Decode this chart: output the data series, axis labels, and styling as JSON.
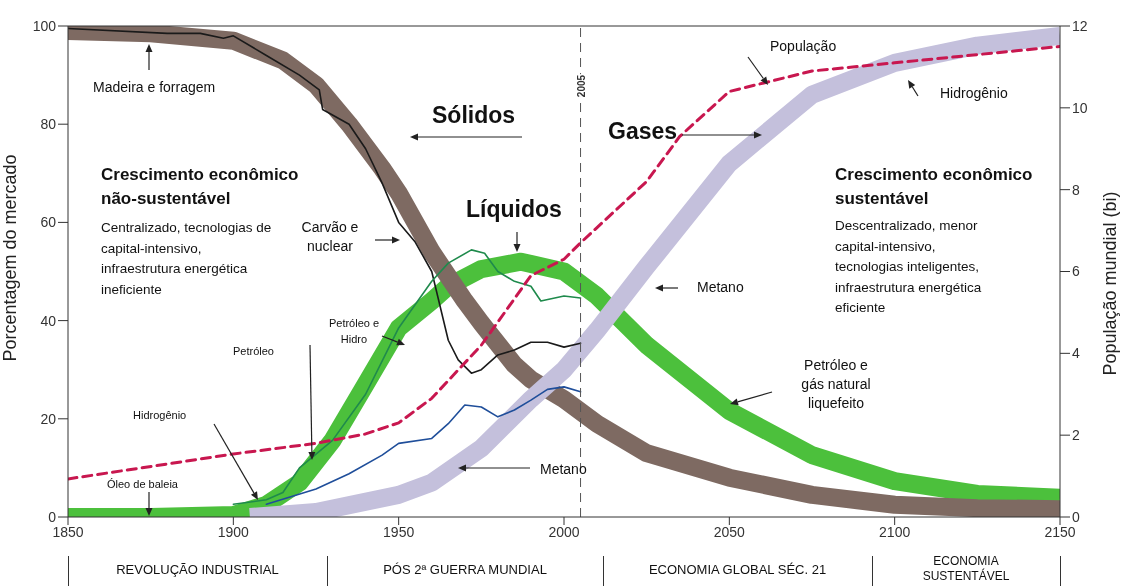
{
  "chart_data": {
    "type": "line",
    "ylabel": "Porcentagem do mercado",
    "y2label": "População mundial (bi)",
    "xlim": [
      1850,
      2150
    ],
    "xticks": [
      1850,
      1900,
      1950,
      2000,
      2050,
      2100,
      2150
    ],
    "ylim": [
      0,
      100
    ],
    "yticks": [
      0,
      20,
      40,
      60,
      80,
      100
    ],
    "y2lim": [
      0,
      12
    ],
    "y2ticks": [
      0,
      2,
      4,
      6,
      8,
      10,
      12
    ],
    "series": [
      {
        "color": "#4cc03c",
        "x": [
          1850,
          1875,
          1900,
          1910,
          1920,
          1930,
          1940,
          1950,
          1960,
          1965,
          1975,
          1987,
          2000,
          2010,
          2025,
          2050,
          2075,
          2100,
          2125,
          2150
        ],
        "values": [
          0,
          0,
          0.4,
          2.5,
          7,
          15.6,
          27,
          38.5,
          44,
          47,
          50.5,
          52,
          50,
          45,
          35,
          21.6,
          12.6,
          7.3,
          4.7,
          3.9
        ]
      },
      {
        "color": "#7e6a62",
        "x": [
          1850,
          1875,
          1900,
          1915,
          1925,
          1935,
          1945,
          1950,
          1960,
          1970,
          1975,
          1985,
          1990,
          2000,
          2010,
          2025,
          2050,
          2075,
          2100,
          2125,
          2150
        ],
        "values": [
          99,
          98.5,
          97,
          93,
          88,
          80,
          71,
          66,
          54,
          44,
          39.5,
          31,
          28,
          24,
          19,
          13,
          8,
          4.5,
          2.5,
          1.8,
          1.6
        ]
      },
      {
        "color": "#c4c0dc",
        "x": [
          1905,
          1925,
          1950,
          1960,
          1975,
          1990,
          2000,
          2010,
          2025,
          2050,
          2075,
          2100,
          2125,
          2150
        ],
        "values": [
          0,
          1,
          4.5,
          7,
          14,
          24,
          30,
          38,
          51,
          72,
          86,
          92.5,
          96,
          98
        ]
      },
      {
        "color": "#1a1a1a",
        "x": [
          1850,
          1880,
          1890,
          1897,
          1900,
          1910,
          1920,
          1926,
          1927,
          1935,
          1940,
          1945,
          1950,
          1955,
          1960,
          1965,
          1968,
          1972,
          1975,
          1980,
          1985,
          1990,
          1995,
          2000,
          2005
        ],
        "values": [
          99.5,
          98.5,
          98.5,
          97.5,
          98,
          94,
          90,
          87,
          83,
          80,
          75,
          68,
          60,
          56,
          50,
          36,
          32,
          29.3,
          30,
          33,
          34,
          35.6,
          35.6,
          34.6,
          35.4
        ]
      },
      {
        "color": "#1f8a4c",
        "x": [
          1900,
          1910,
          1915,
          1920,
          1930,
          1940,
          1950,
          1960,
          1965,
          1972,
          1976,
          1980,
          1985,
          1990,
          1993,
          2000,
          2005
        ],
        "values": [
          2.6,
          3.5,
          5,
          10,
          15.6,
          25,
          38.5,
          48,
          51.7,
          54.4,
          53.7,
          50,
          48,
          47,
          44,
          45,
          44.6
        ]
      },
      {
        "color": "#1f4e9a",
        "x": [
          1910,
          1925,
          1935,
          1945,
          1950,
          1960,
          1965,
          1970,
          1975,
          1980,
          1985,
          1990,
          1995,
          2000,
          2005
        ],
        "values": [
          2.6,
          5.7,
          8.8,
          12.6,
          15,
          16,
          19,
          22.8,
          22.4,
          20.4,
          21.8,
          23.8,
          26,
          26.5,
          25.5
        ]
      },
      {
        "color": "#c8174f",
        "axis": "y2",
        "line_style": "dashed",
        "x": [
          1850,
          1900,
          1925,
          1940,
          1950,
          1960,
          1975,
          1990,
          2000,
          2005,
          2025,
          2035,
          2050,
          2075,
          2100,
          2150
        ],
        "values": [
          0.93,
          1.54,
          1.8,
          2.03,
          2.3,
          2.9,
          4.2,
          5.9,
          6.3,
          6.7,
          8.2,
          9.3,
          10.4,
          10.9,
          11.1,
          11.5
        ]
      }
    ],
    "ref_lines": [
      {
        "axis": "x",
        "value": 2005,
        "label": "2005",
        "line_style": "dashed",
        "color": "#555555"
      }
    ],
    "annotations": [
      "Madeira e forragem",
      "Sólidos",
      "Carvão e nuclear",
      "Líquidos",
      "Petróleo e Hidro",
      "Petróleo",
      "Hidrogênio",
      "Óleo de baleia",
      "Metano",
      "Gases",
      "População",
      "Hidrogênio",
      "Metano",
      "Petróleo e gás natural liquefeito",
      "Crescimento econômico não-sustentável",
      "Centralizado, tecnologias de capital-intensivo, infraestrutura energética ineficiente",
      "Crescimento econômico sustentável",
      "Descentralizado, menor capital-intensivo, tecnologias inteligentes, infraestrutura energética eficiente",
      "REVOLUÇÃO INDUSTRIAL",
      "PÓS 2ª GUERRA MUNDIAL",
      "ECONOMIA GLOBAL SÉC. 21",
      "ECONOMIA SUSTENTÁVEL"
    ]
  }
}
